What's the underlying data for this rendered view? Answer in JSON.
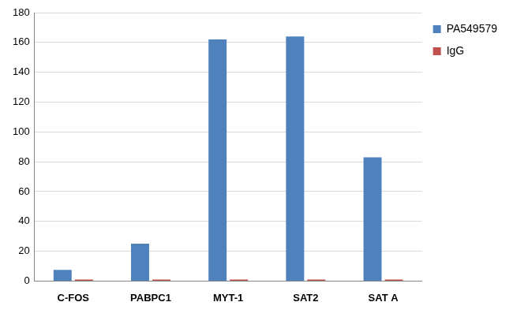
{
  "chart_data": {
    "type": "bar",
    "categories": [
      "C-FOS",
      "PABPC1",
      "MYT-1",
      "SAT2",
      "SAT A"
    ],
    "series": [
      {
        "name": "PA549579",
        "color": "#4f81bd",
        "values": [
          7.5,
          25,
          162,
          164,
          83
        ]
      },
      {
        "name": "IgG",
        "color": "#c0504d",
        "values": [
          1,
          1,
          1,
          1,
          1
        ]
      }
    ],
    "ylim": [
      0,
      180
    ],
    "yticks": [
      0,
      20,
      40,
      60,
      80,
      100,
      120,
      140,
      160,
      180
    ],
    "grid": true,
    "legend": "right"
  }
}
